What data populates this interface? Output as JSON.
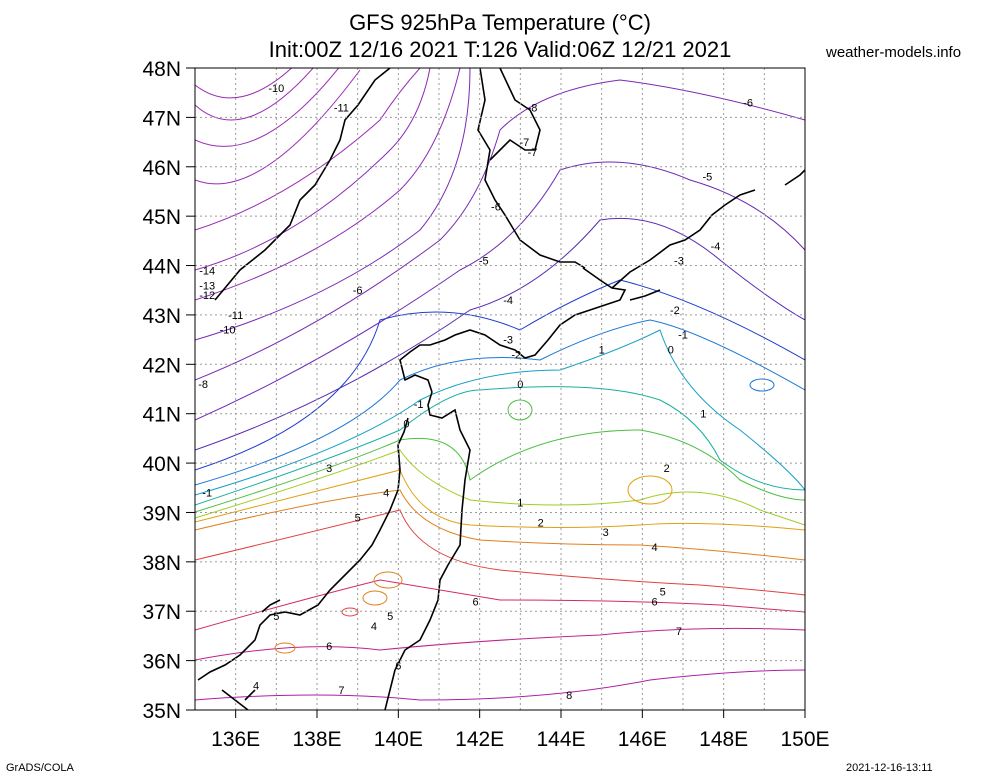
{
  "header": {
    "title_line1": "GFS 925hPa Temperature (°C)",
    "title_line2": "Init:00Z 12/16 2021 T:126 Valid:06Z 12/21 2021",
    "brand": "weather-models.info"
  },
  "footer": {
    "credit": "GrADS/COLA",
    "timestamp": "2021-12-16-13:11"
  },
  "axes": {
    "lat_labels": [
      "48N",
      "47N",
      "46N",
      "45N",
      "44N",
      "43N",
      "42N",
      "41N",
      "40N",
      "39N",
      "38N",
      "37N",
      "36N",
      "35N"
    ],
    "lon_labels": [
      "136E",
      "138E",
      "140E",
      "142E",
      "144E",
      "146E",
      "148E",
      "150E"
    ],
    "lat_range": [
      35,
      48
    ],
    "lon_range": [
      135,
      150
    ],
    "grid": "dotted"
  },
  "colors": {
    "coast": "#000000",
    "grid": "#9a9a9a",
    "contour_palette": {
      "-14": "#9a2ab4",
      "-13": "#9a2ab4",
      "-12": "#9a2ab4",
      "-11": "#9a2ab4",
      "-10": "#9a2ab4",
      "-8": "#7a2ab4",
      "-6": "#6a2ab4",
      "-5": "#5a2ab4",
      "-4": "#4a2ab4",
      "-3": "#1f3dd0",
      "-2": "#1e78d8",
      "-1": "#14a0c8",
      "0": "#16b0a0",
      "1": "#4cc040",
      "2": "#a0cc20",
      "3": "#e0a010",
      "4": "#e0801e",
      "5": "#e04040",
      "6": "#d22a6a",
      "7": "#c0208c",
      "8": "#b01ca8"
    }
  },
  "contour_labels": [
    {
      "text": "-10",
      "lon": 137.0,
      "lat": 47.6
    },
    {
      "text": "-11",
      "lon": 138.6,
      "lat": 47.2
    },
    {
      "text": "-8",
      "lon": 143.3,
      "lat": 47.2
    },
    {
      "text": "-6",
      "lon": 148.6,
      "lat": 47.3
    },
    {
      "text": "-7",
      "lon": 143.1,
      "lat": 46.5
    },
    {
      "text": "-7",
      "lon": 143.3,
      "lat": 46.3
    },
    {
      "text": "-5",
      "lon": 147.6,
      "lat": 45.8
    },
    {
      "text": "-6",
      "lon": 142.4,
      "lat": 45.2
    },
    {
      "text": "-4",
      "lon": 147.8,
      "lat": 44.4
    },
    {
      "text": "-3",
      "lon": 146.9,
      "lat": 44.1
    },
    {
      "text": "-5",
      "lon": 142.1,
      "lat": 44.1
    },
    {
      "text": "-14",
      "lon": 135.3,
      "lat": 43.9
    },
    {
      "text": "-13",
      "lon": 135.3,
      "lat": 43.6
    },
    {
      "text": "-12",
      "lon": 135.3,
      "lat": 43.4
    },
    {
      "text": "-6",
      "lon": 139.0,
      "lat": 43.5
    },
    {
      "text": "-4",
      "lon": 142.7,
      "lat": 43.3
    },
    {
      "text": "-11",
      "lon": 136.0,
      "lat": 43.0
    },
    {
      "text": "-10",
      "lon": 135.8,
      "lat": 42.7
    },
    {
      "text": "-2",
      "lon": 146.8,
      "lat": 43.1
    },
    {
      "text": "-1",
      "lon": 147.0,
      "lat": 42.6
    },
    {
      "text": "-3",
      "lon": 142.7,
      "lat": 42.5
    },
    {
      "text": "-2",
      "lon": 142.9,
      "lat": 42.2
    },
    {
      "text": "1",
      "lon": 145.0,
      "lat": 42.3
    },
    {
      "text": "0",
      "lon": 146.7,
      "lat": 42.3
    },
    {
      "text": "-8",
      "lon": 135.2,
      "lat": 41.6
    },
    {
      "text": "0",
      "lon": 143.0,
      "lat": 41.6
    },
    {
      "text": "-1",
      "lon": 140.5,
      "lat": 41.2
    },
    {
      "text": "1",
      "lon": 147.5,
      "lat": 41.0
    },
    {
      "text": "0",
      "lon": 140.2,
      "lat": 40.8
    },
    {
      "text": "3",
      "lon": 138.3,
      "lat": 39.9
    },
    {
      "text": "2",
      "lon": 146.6,
      "lat": 39.9
    },
    {
      "text": "-1",
      "lon": 135.3,
      "lat": 39.4
    },
    {
      "text": "4",
      "lon": 139.7,
      "lat": 39.4
    },
    {
      "text": "1",
      "lon": 143.0,
      "lat": 39.2
    },
    {
      "text": "5",
      "lon": 139.0,
      "lat": 38.9
    },
    {
      "text": "2",
      "lon": 143.5,
      "lat": 38.8
    },
    {
      "text": "3",
      "lon": 145.1,
      "lat": 38.6
    },
    {
      "text": "4",
      "lon": 146.3,
      "lat": 38.3
    },
    {
      "text": "5",
      "lon": 146.5,
      "lat": 37.4
    },
    {
      "text": "6",
      "lon": 141.9,
      "lat": 37.2
    },
    {
      "text": "6",
      "lon": 146.3,
      "lat": 37.2
    },
    {
      "text": "5",
      "lon": 137.0,
      "lat": 36.9
    },
    {
      "text": "5",
      "lon": 139.8,
      "lat": 36.9
    },
    {
      "text": "4",
      "lon": 139.4,
      "lat": 36.7
    },
    {
      "text": "7",
      "lon": 146.9,
      "lat": 36.6
    },
    {
      "text": "6",
      "lon": 138.3,
      "lat": 36.3
    },
    {
      "text": "6",
      "lon": 140.0,
      "lat": 35.9
    },
    {
      "text": "4",
      "lon": 136.5,
      "lat": 35.5
    },
    {
      "text": "7",
      "lon": 138.6,
      "lat": 35.4
    },
    {
      "text": "8",
      "lon": 144.2,
      "lat": 35.3
    }
  ]
}
